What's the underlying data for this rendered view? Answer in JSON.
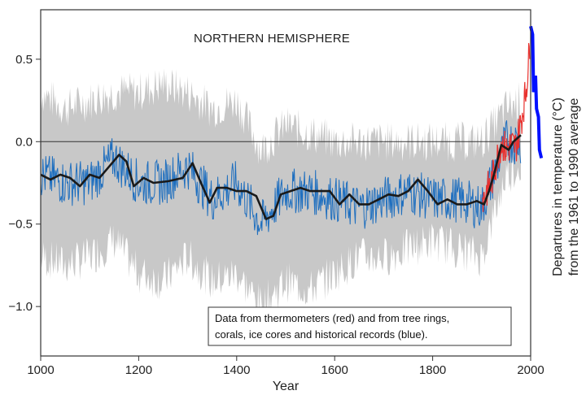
{
  "chart_data": {
    "type": "line",
    "title": "NORTHERN HEMISPHERE",
    "xlabel": "Year",
    "ylabel": [
      "Departures in temperature (°C)",
      "from the 1961 to 1990 average"
    ],
    "note": [
      "Data from thermometers (red) and from tree rings,",
      "corals, ice cores and historical records (blue)."
    ],
    "xlim": [
      1000,
      2000
    ],
    "ylim": [
      -1.3,
      0.8
    ],
    "xticks": [
      1000,
      1200,
      1400,
      1600,
      1800,
      2000
    ],
    "xtick_labels": [
      "1000",
      "1200",
      "1400",
      "1600",
      "1800",
      "2000"
    ],
    "yticks": [
      -1.0,
      -0.5,
      0.0,
      0.5
    ],
    "ytick_labels": [
      "−1.0",
      "−0.5",
      "0.0",
      "0.5"
    ],
    "zero_line": 0.0,
    "colors": {
      "band": "#c8c8c8",
      "proxy": "#1f6fbf",
      "instrumental": "#e8322f",
      "smoothed": "#1a1a1a",
      "accent": "#0010ff"
    },
    "series": [
      {
        "name": "thermometers (red)",
        "color": "#e8322f",
        "x": [
          1902,
          1910,
          1920,
          1930,
          1940,
          1950,
          1960,
          1970,
          1980,
          1990,
          1995,
          1998
        ],
        "y": [
          -0.35,
          -0.3,
          -0.25,
          -0.12,
          0.0,
          -0.05,
          -0.02,
          -0.03,
          0.12,
          0.3,
          0.45,
          0.6
        ]
      },
      {
        "name": "tree rings, corals, ice cores and historical records (blue)",
        "color": "#1f6fbf",
        "x": [
          1000,
          1050,
          1100,
          1150,
          1200,
          1250,
          1300,
          1350,
          1400,
          1450,
          1500,
          1550,
          1600,
          1650,
          1700,
          1750,
          1800,
          1850,
          1900,
          1950,
          1980
        ],
        "y": [
          -0.2,
          -0.25,
          -0.25,
          -0.1,
          -0.25,
          -0.25,
          -0.15,
          -0.35,
          -0.25,
          -0.5,
          -0.3,
          -0.3,
          -0.35,
          -0.4,
          -0.35,
          -0.3,
          -0.35,
          -0.35,
          -0.4,
          0.0,
          0.0
        ]
      },
      {
        "name": "smoothed",
        "color": "#1a1a1a",
        "x": [
          1000,
          1020,
          1040,
          1060,
          1080,
          1100,
          1120,
          1140,
          1160,
          1175,
          1190,
          1210,
          1230,
          1260,
          1290,
          1310,
          1330,
          1345,
          1360,
          1380,
          1400,
          1420,
          1440,
          1460,
          1475,
          1490,
          1510,
          1530,
          1550,
          1570,
          1590,
          1610,
          1630,
          1650,
          1670,
          1690,
          1710,
          1730,
          1750,
          1770,
          1790,
          1810,
          1830,
          1850,
          1870,
          1890,
          1905,
          1915,
          1925,
          1940,
          1955,
          1965,
          1980
        ],
        "y": [
          -0.2,
          -0.23,
          -0.2,
          -0.22,
          -0.27,
          -0.2,
          -0.22,
          -0.15,
          -0.08,
          -0.12,
          -0.27,
          -0.22,
          -0.25,
          -0.24,
          -0.22,
          -0.13,
          -0.27,
          -0.37,
          -0.28,
          -0.28,
          -0.3,
          -0.3,
          -0.33,
          -0.47,
          -0.45,
          -0.32,
          -0.3,
          -0.28,
          -0.3,
          -0.3,
          -0.3,
          -0.38,
          -0.32,
          -0.38,
          -0.38,
          -0.35,
          -0.32,
          -0.33,
          -0.3,
          -0.23,
          -0.3,
          -0.38,
          -0.35,
          -0.38,
          -0.38,
          -0.36,
          -0.38,
          -0.3,
          -0.2,
          -0.02,
          -0.05,
          0.0,
          0.04
        ]
      }
    ],
    "band": {
      "name": "uncertainty range (grey)",
      "x": [
        1000,
        1050,
        1100,
        1150,
        1200,
        1250,
        1300,
        1350,
        1400,
        1450,
        1500,
        1550,
        1600,
        1650,
        1700,
        1750,
        1800,
        1850,
        1900,
        1950,
        1980
      ],
      "upper": [
        0.3,
        0.2,
        0.25,
        0.3,
        0.3,
        0.35,
        0.3,
        0.2,
        0.25,
        -0.05,
        0.1,
        0.05,
        0.0,
        0.0,
        0.0,
        0.0,
        0.0,
        0.0,
        0.0,
        0.2,
        0.25
      ],
      "lower": [
        -0.7,
        -0.75,
        -0.7,
        -0.6,
        -0.8,
        -0.85,
        -0.7,
        -0.85,
        -0.8,
        -1.0,
        -0.85,
        -0.9,
        -0.8,
        -0.7,
        -0.7,
        -0.65,
        -0.6,
        -0.65,
        -0.7,
        -0.2,
        -0.15
      ]
    },
    "accent_marks": {
      "name": "blue accent strokes",
      "color": "#0010ff",
      "x": [
        2000,
        2004,
        2006,
        2010,
        2012,
        2016,
        2018,
        2022
      ],
      "y": [
        0.7,
        0.65,
        0.3,
        0.4,
        0.2,
        0.15,
        -0.05,
        -0.1
      ]
    },
    "grid": false,
    "legend": "none"
  }
}
